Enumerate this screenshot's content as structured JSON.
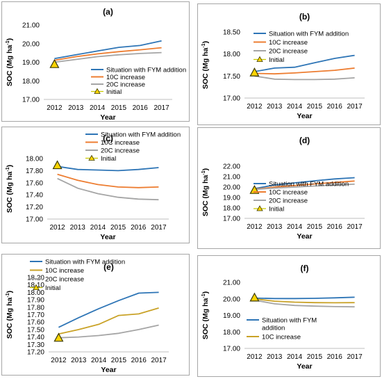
{
  "chart_data": [
    {
      "type": "line",
      "title": "(a)",
      "xlabel": "Year",
      "ylabel": "SOC (Mg ha",
      "ylabel_sup": "-1",
      "ylabel_close": ")",
      "categories": [
        "2012",
        "2013",
        "2014",
        "2015",
        "2016",
        "2017"
      ],
      "ylim": [
        17.0,
        21.0
      ],
      "yticks": [
        "17.00",
        "18.00",
        "19.00",
        "20.00",
        "21.00"
      ],
      "ytick_values": [
        17.0,
        18.0,
        19.0,
        20.0,
        21.0
      ],
      "legend_position": "bottom-right",
      "series": [
        {
          "name": "Situation with FYM addition",
          "color": "#2e75b6",
          "values": [
            19.2,
            19.4,
            19.6,
            19.8,
            19.9,
            20.15
          ]
        },
        {
          "name": "10C increase",
          "color": "#ed7d31",
          "values": [
            19.1,
            19.3,
            19.45,
            19.57,
            19.67,
            19.78
          ]
        },
        {
          "name": "20C increase",
          "color": "#a5a5a5",
          "values": [
            19.0,
            19.15,
            19.3,
            19.4,
            19.47,
            19.52
          ]
        }
      ],
      "initial": {
        "name": "Initial",
        "x": "2012",
        "value": 18.9
      }
    },
    {
      "type": "line",
      "title": "(b)",
      "xlabel": "Year",
      "ylabel": "SOC (Mg ha",
      "ylabel_sup": "-1",
      "ylabel_close": ")",
      "categories": [
        "2012",
        "2013",
        "2014",
        "2015",
        "2016",
        "2017"
      ],
      "ylim": [
        17.0,
        18.5
      ],
      "yticks": [
        "17.00",
        "17.50",
        "18.00",
        "18.50"
      ],
      "ytick_values": [
        17.0,
        17.5,
        18.0,
        18.5
      ],
      "legend_position": "top-right",
      "series": [
        {
          "name": "Situation with FYM addition",
          "color": "#2e75b6",
          "values": [
            17.6,
            17.68,
            17.7,
            17.8,
            17.9,
            17.97
          ]
        },
        {
          "name": "10C increase",
          "color": "#ed7d31",
          "values": [
            17.56,
            17.55,
            17.57,
            17.6,
            17.63,
            17.68
          ]
        },
        {
          "name": "20C increase",
          "color": "#a5a5a5",
          "values": [
            17.5,
            17.43,
            17.42,
            17.42,
            17.43,
            17.46
          ]
        }
      ],
      "initial": {
        "name": "Initial",
        "x": "2012",
        "value": 17.58
      }
    },
    {
      "type": "line",
      "title": "(c)",
      "xlabel": "Year",
      "ylabel": "SOC (Mg ha",
      "ylabel_sup": "-1",
      "ylabel_close": ")",
      "categories": [
        "2012",
        "2013",
        "2014",
        "2015",
        "2016",
        "2017"
      ],
      "ylim": [
        17.0,
        18.0
      ],
      "yticks": [
        "17.00",
        "17.20",
        "17.40",
        "17.60",
        "17.80",
        "18.00"
      ],
      "ytick_values": [
        17.0,
        17.2,
        17.4,
        17.6,
        17.8,
        18.0
      ],
      "legend_position": "top-right",
      "series": [
        {
          "name": "Situation with FYM addition",
          "color": "#2e75b6",
          "values": [
            17.87,
            17.82,
            17.81,
            17.8,
            17.82,
            17.85
          ]
        },
        {
          "name": "10C increase",
          "color": "#ed7d31",
          "values": [
            17.74,
            17.64,
            17.57,
            17.53,
            17.52,
            17.53
          ]
        },
        {
          "name": "20C increase",
          "color": "#a5a5a5",
          "values": [
            17.67,
            17.51,
            17.42,
            17.36,
            17.33,
            17.32
          ]
        }
      ],
      "initial": {
        "name": "Initial",
        "x": "2012",
        "value": 17.89
      }
    },
    {
      "type": "line",
      "title": "(d)",
      "xlabel": "Year",
      "ylabel": "SOC (Mg ha",
      "ylabel_sup": "-1",
      "ylabel_close": ")",
      "categories": [
        "2012",
        "2013",
        "2014",
        "2015",
        "2016",
        "2017"
      ],
      "ylim": [
        17.0,
        22.0
      ],
      "yticks": [
        "17.00",
        "18.00",
        "19.00",
        "20.00",
        "21.00",
        "22.00"
      ],
      "ytick_values": [
        17.0,
        18.0,
        19.0,
        20.0,
        21.0,
        22.0
      ],
      "legend_position": "bottom-right",
      "series": [
        {
          "name": "Situation with FYM addition",
          "color": "#2e75b6",
          "values": [
            19.85,
            20.2,
            20.4,
            20.6,
            20.78,
            20.9
          ]
        },
        {
          "name": "10C increase",
          "color": "#ed7d31",
          "values": [
            19.8,
            20.0,
            20.15,
            20.3,
            20.45,
            20.58
          ]
        },
        {
          "name": "20C increase",
          "color": "#a5a5a5",
          "values": [
            19.78,
            19.9,
            20.0,
            20.1,
            20.2,
            20.28
          ]
        }
      ],
      "initial": {
        "name": "Initial",
        "x": "2012",
        "value": 19.72
      }
    },
    {
      "type": "line",
      "title": "(e)",
      "xlabel": "Year",
      "ylabel": "SOC (Mg ha",
      "ylabel_sup": "-1",
      "ylabel_close": ")",
      "categories": [
        "2012",
        "2013",
        "2014",
        "2015",
        "2016",
        "2017"
      ],
      "ylim": [
        17.2,
        18.2
      ],
      "yticks": [
        "17.20",
        "17.30",
        "17.40",
        "17.50",
        "17.60",
        "17.70",
        "17.80",
        "17.90",
        "18.00",
        "18.10",
        "18.20"
      ],
      "ytick_values": [
        17.2,
        17.3,
        17.4,
        17.5,
        17.6,
        17.7,
        17.8,
        17.9,
        18.0,
        18.1,
        18.2
      ],
      "legend_position": "top-left",
      "series": [
        {
          "name": "Situation with FYM addition",
          "color": "#2e75b6",
          "values": [
            17.53,
            17.66,
            17.78,
            17.89,
            17.99,
            18.0
          ]
        },
        {
          "name": "10C increase",
          "color": "#c9a227",
          "values": [
            17.44,
            17.5,
            17.57,
            17.69,
            17.71,
            17.79
          ]
        },
        {
          "name": "20C increase",
          "color": "#a5a5a5",
          "values": [
            17.39,
            17.4,
            17.42,
            17.45,
            17.5,
            17.56
          ]
        }
      ],
      "initial": {
        "name": "Initial",
        "x": "2012",
        "value": 17.39
      }
    },
    {
      "type": "line",
      "title": "(f)",
      "xlabel": "Year",
      "ylabel": "SOC (Mg ha",
      "ylabel_sup": "-1",
      "ylabel_close": ")",
      "categories": [
        "2012",
        "2013",
        "2014",
        "2015",
        "2016",
        "2017"
      ],
      "ylim": [
        17.0,
        21.0
      ],
      "yticks": [
        "17.00",
        "18.00",
        "19.00",
        "20.00",
        "21.00"
      ],
      "ytick_values": [
        17.0,
        18.0,
        19.0,
        20.0,
        21.0
      ],
      "legend_position": "bottom-left",
      "series": [
        {
          "name": "Situation with FYM addition",
          "color": "#2e75b6",
          "values": [
            20.05,
            20.02,
            20.02,
            20.03,
            20.06,
            20.1
          ]
        },
        {
          "name": "10C increase",
          "color": "#c9a227",
          "values": [
            20.0,
            19.86,
            19.8,
            19.77,
            19.76,
            19.77
          ]
        },
        {
          "name": "",
          "color": "#a5a5a5",
          "values": [
            19.92,
            19.7,
            19.6,
            19.56,
            19.53,
            19.52
          ]
        }
      ],
      "initial": {
        "name": "",
        "x": "2012",
        "value": 20.08
      }
    }
  ]
}
